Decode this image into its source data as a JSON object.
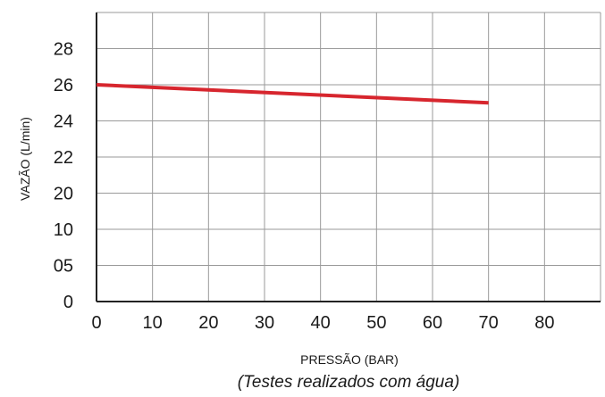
{
  "chart_data": {
    "type": "line",
    "title": "",
    "xlabel": "PRESSÃO (BAR)",
    "ylabel": "VAZÃO (L/min)",
    "caption": "(Testes realizados com água)",
    "x_ticks": [
      "0",
      "10",
      "20",
      "30",
      "40",
      "50",
      "60",
      "70",
      "80"
    ],
    "y_ticks": [
      "0",
      "05",
      "10",
      "20",
      "22",
      "24",
      "26",
      "28"
    ],
    "xlim": [
      0,
      90
    ],
    "grid": true,
    "legend": "none",
    "series": [
      {
        "color": "#d7262e",
        "x": [
          0,
          70
        ],
        "y": [
          26,
          25
        ]
      }
    ]
  }
}
